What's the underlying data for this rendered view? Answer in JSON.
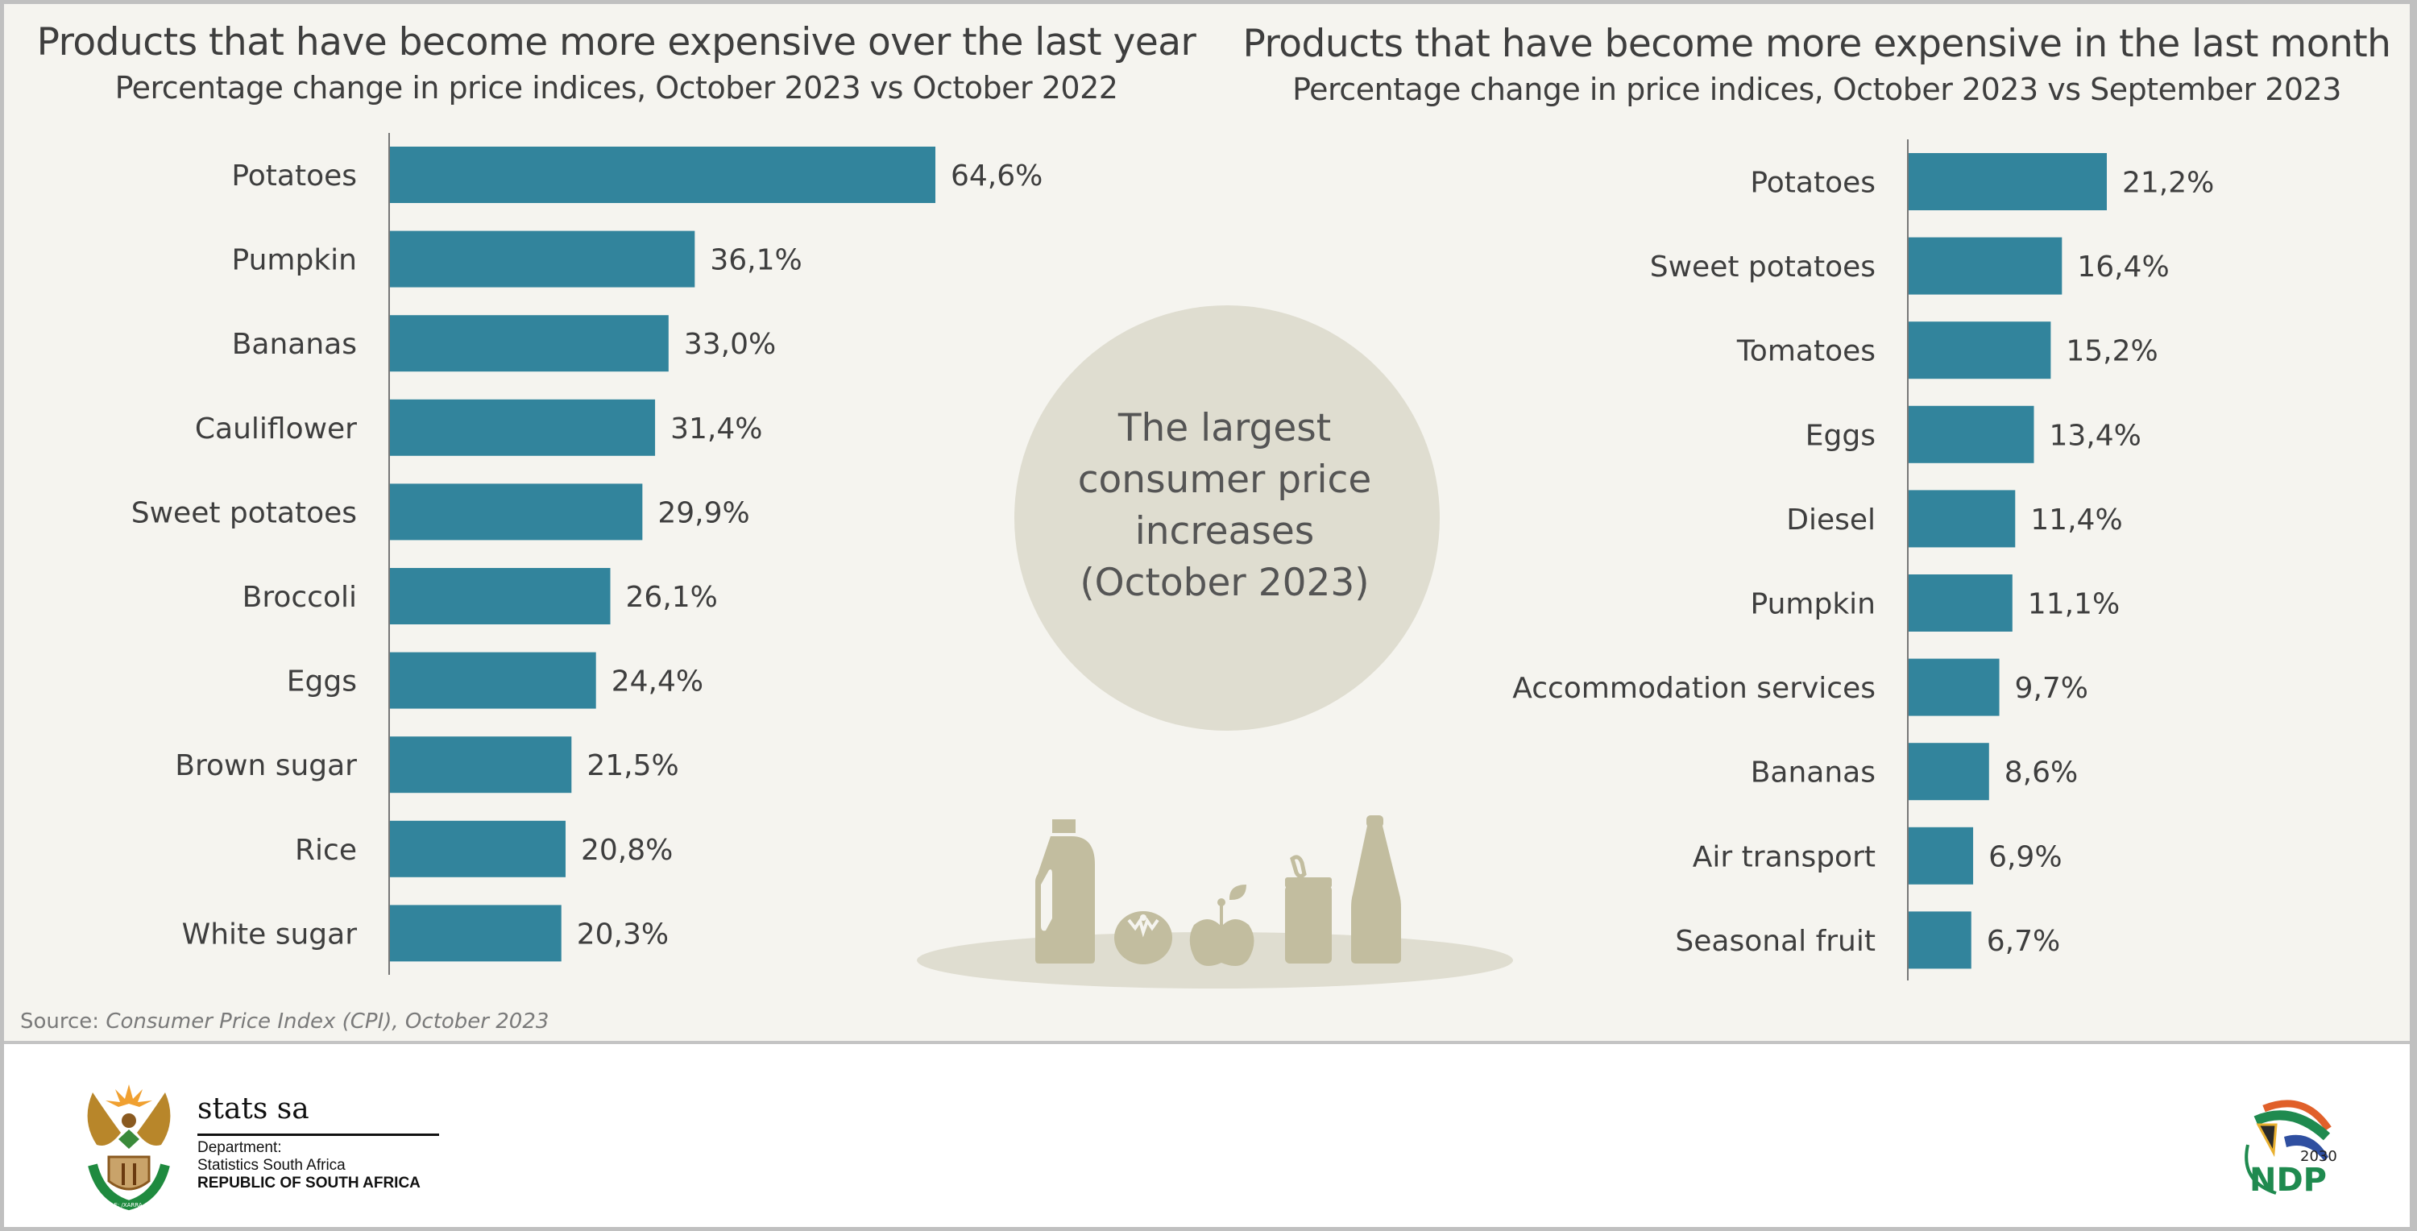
{
  "colors": {
    "bar": "#32849c",
    "panel_bg": "#f5f4ef",
    "circle": "#dfddd0",
    "icons": "#c2bd9f",
    "text": "#3e3e3e"
  },
  "centre_circle": {
    "lines": [
      "The largest",
      "consumer price",
      "increases",
      "(October 2023)"
    ]
  },
  "source": {
    "prefix": "Source: ",
    "text": "Consumer Price Index (CPI), October 2023"
  },
  "footer": {
    "stats_name": "stats sa",
    "dept_lines": [
      "Department:",
      "Statistics South Africa"
    ],
    "republic": "REPUBLIC OF SOUTH AFRICA",
    "coat_of_arms_motto": "!KE E: /XARRA //KE",
    "ndp_logo_text": "NDP",
    "ndp_logo_year": "2030"
  },
  "decorative_icons": [
    "milk-jug-icon",
    "tomato-icon",
    "apple-icon",
    "jar-icon",
    "bottle-icon"
  ],
  "chart_data": [
    {
      "type": "bar",
      "orientation": "horizontal",
      "title": "Products that have become more expensive over the last year",
      "subtitle": "Percentage change in price indices, October 2023 vs October 2022",
      "xlabel": "",
      "ylabel": "",
      "unit": "%",
      "xlim": [
        0,
        64.6
      ],
      "grid": false,
      "categories": [
        "Potatoes",
        "Pumpkin",
        "Bananas",
        "Cauliflower",
        "Sweet potatoes",
        "Broccoli",
        "Eggs",
        "Brown sugar",
        "Rice",
        "White sugar"
      ],
      "values": [
        64.6,
        36.1,
        33.0,
        31.4,
        29.9,
        26.1,
        24.4,
        21.5,
        20.8,
        20.3
      ],
      "labels": [
        "64,6%",
        "36,1%",
        "33,0%",
        "31,4%",
        "29,9%",
        "26,1%",
        "24,4%",
        "21,5%",
        "20,8%",
        "20,3%"
      ]
    },
    {
      "type": "bar",
      "orientation": "horizontal",
      "title": "Products that have become more expensive in the last month",
      "subtitle": "Percentage change in price indices, October 2023 vs September 2023",
      "xlabel": "",
      "ylabel": "",
      "unit": "%",
      "xlim": [
        0,
        21.2
      ],
      "grid": false,
      "categories": [
        "Potatoes",
        "Sweet potatoes",
        "Tomatoes",
        "Eggs",
        "Diesel",
        "Pumpkin",
        "Accommodation services",
        "Bananas",
        "Air transport",
        "Seasonal fruit"
      ],
      "values": [
        21.2,
        16.4,
        15.2,
        13.4,
        11.4,
        11.1,
        9.7,
        8.6,
        6.9,
        6.7
      ],
      "labels": [
        "21,2%",
        "16,4%",
        "15,2%",
        "13,4%",
        "11,4%",
        "11,1%",
        "9,7%",
        "8,6%",
        "6,9%",
        "6,7%"
      ]
    }
  ]
}
